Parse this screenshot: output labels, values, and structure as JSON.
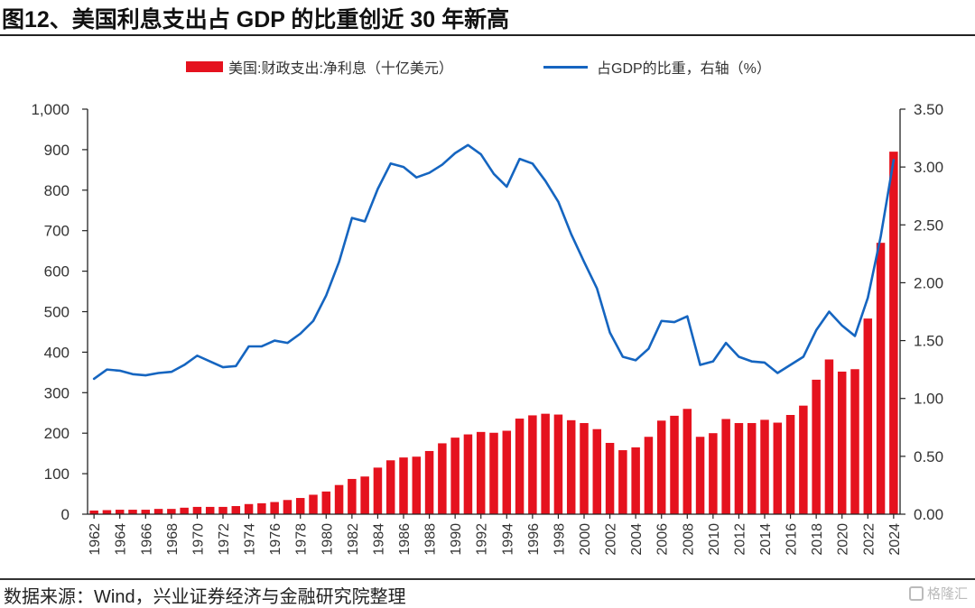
{
  "title": "图12、美国利息支出占 GDP 的比重创近 30 年新高",
  "footer": {
    "source": "数据来源：Wind，兴业证券经济与金融研究院整理",
    "logo_text": "格隆汇"
  },
  "colors": {
    "bar": "#e5121e",
    "line": "#1565c0",
    "axis": "#222222"
  },
  "chart_data": {
    "type": "bar+line",
    "title": "图12、美国利息支出占 GDP 的比重创近 30 年新高",
    "legend_position": "top-right",
    "x": [
      1962,
      1963,
      1964,
      1965,
      1966,
      1967,
      1968,
      1969,
      1970,
      1971,
      1972,
      1973,
      1974,
      1975,
      1976,
      1977,
      1978,
      1979,
      1980,
      1981,
      1982,
      1983,
      1984,
      1985,
      1986,
      1987,
      1988,
      1989,
      1990,
      1991,
      1992,
      1993,
      1994,
      1995,
      1996,
      1997,
      1998,
      1999,
      2000,
      2001,
      2002,
      2003,
      2004,
      2005,
      2006,
      2007,
      2008,
      2009,
      2010,
      2011,
      2012,
      2013,
      2014,
      2015,
      2016,
      2017,
      2018,
      2019,
      2020,
      2021,
      2022,
      2023,
      2024
    ],
    "x_tick_labels": [
      "1962",
      "1964",
      "1966",
      "1968",
      "1970",
      "1972",
      "1974",
      "1976",
      "1978",
      "1980",
      "1982",
      "1984",
      "1986",
      "1988",
      "1990",
      "1992",
      "1994",
      "1996",
      "1998",
      "2000",
      "2002",
      "2004",
      "2006",
      "2008",
      "2010",
      "2012",
      "2014",
      "2016",
      "2018",
      "2020",
      "2022",
      "2024"
    ],
    "series": [
      {
        "name": "美国:财政支出:净利息（十亿美元）",
        "type": "bar",
        "axis": "left",
        "values": [
          9,
          10,
          11,
          11,
          11,
          13,
          13,
          16,
          18,
          18,
          18,
          20,
          25,
          27,
          30,
          35,
          40,
          48,
          56,
          72,
          87,
          93,
          115,
          133,
          140,
          142,
          156,
          175,
          189,
          197,
          203,
          201,
          206,
          236,
          244,
          248,
          246,
          232,
          225,
          210,
          176,
          158,
          165,
          191,
          231,
          243,
          260,
          191,
          200,
          235,
          225,
          225,
          233,
          226,
          245,
          268,
          332,
          382,
          352,
          358,
          483,
          670,
          895
        ]
      },
      {
        "name": "占GDP的比重，右轴（%）",
        "type": "line",
        "axis": "right",
        "values": [
          1.17,
          1.25,
          1.24,
          1.21,
          1.2,
          1.22,
          1.23,
          1.29,
          1.37,
          1.32,
          1.27,
          1.28,
          1.45,
          1.45,
          1.5,
          1.48,
          1.56,
          1.67,
          1.89,
          2.18,
          2.56,
          2.53,
          2.81,
          3.03,
          3.0,
          2.91,
          2.95,
          3.02,
          3.12,
          3.19,
          3.11,
          2.94,
          2.83,
          3.07,
          3.03,
          2.88,
          2.7,
          2.42,
          2.18,
          1.95,
          1.57,
          1.36,
          1.33,
          1.43,
          1.67,
          1.66,
          1.71,
          1.29,
          1.32,
          1.48,
          1.36,
          1.32,
          1.31,
          1.22,
          1.29,
          1.36,
          1.59,
          1.75,
          1.63,
          1.54,
          1.87,
          2.4,
          3.06
        ]
      }
    ],
    "y_left": {
      "ylim": [
        0,
        1000
      ],
      "ticks": [
        0,
        100,
        200,
        300,
        400,
        500,
        600,
        700,
        800,
        900,
        1000
      ],
      "tick_labels": [
        "0",
        "100",
        "200",
        "300",
        "400",
        "500",
        "600",
        "700",
        "800",
        "900",
        "1,000"
      ]
    },
    "y_right": {
      "ylim": [
        0,
        3.5
      ],
      "ticks": [
        0,
        0.5,
        1.0,
        1.5,
        2.0,
        2.5,
        3.0,
        3.5
      ],
      "tick_labels": [
        "0.00",
        "0.50",
        "1.00",
        "1.50",
        "2.00",
        "2.50",
        "3.00",
        "3.50"
      ]
    },
    "grid": false,
    "legend": [
      {
        "label": "美国:财政支出:净利息（十亿美元）",
        "kind": "bar"
      },
      {
        "label": "占GDP的比重，右轴（%）",
        "kind": "line"
      }
    ]
  }
}
